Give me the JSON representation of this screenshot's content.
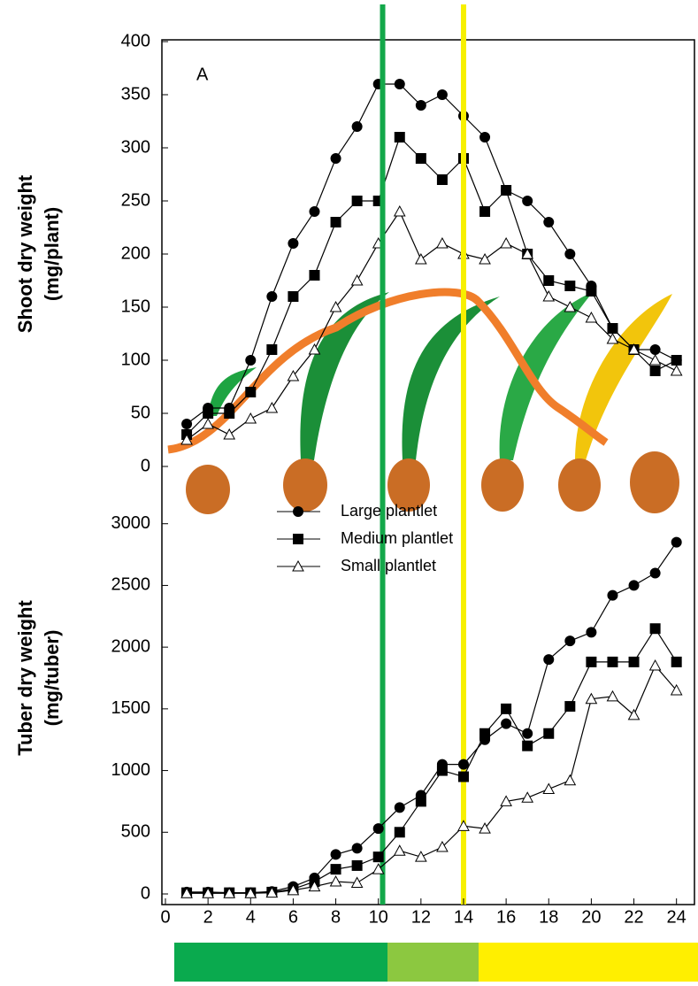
{
  "chart_data": [
    {
      "type": "line",
      "panel_label": "A",
      "ylabel": [
        "Shoot dry weight",
        "(mg/plant)"
      ],
      "x": [
        1,
        2,
        3,
        4,
        5,
        6,
        7,
        8,
        9,
        10,
        11,
        12,
        13,
        14,
        15,
        16,
        17,
        18,
        19,
        20,
        21,
        22,
        23,
        24
      ],
      "series": [
        {
          "name": "Large plantlet",
          "color": "#000000",
          "marker": "circle",
          "values": [
            40,
            55,
            55,
            100,
            160,
            210,
            240,
            290,
            320,
            360,
            360,
            340,
            350,
            330,
            310,
            260,
            250,
            230,
            200,
            170,
            130,
            110,
            110,
            100
          ]
        },
        {
          "name": "Medium plantlet",
          "color": "#000000",
          "marker": "square",
          "values": [
            30,
            50,
            50,
            70,
            110,
            160,
            180,
            230,
            250,
            250,
            310,
            290,
            270,
            290,
            240,
            260,
            200,
            175,
            170,
            165,
            130,
            110,
            90,
            100
          ]
        },
        {
          "name": "Small plantlet",
          "color": "#000000",
          "marker": "triangle",
          "values": [
            25,
            40,
            30,
            45,
            55,
            85,
            110,
            150,
            175,
            210,
            240,
            195,
            210,
            200,
            195,
            210,
            200,
            160,
            150,
            140,
            120,
            110,
            100,
            90
          ]
        }
      ],
      "xlim": [
        0,
        25
      ],
      "ylim": [
        0,
        400
      ],
      "yticks": [
        0,
        50,
        100,
        150,
        200,
        250,
        300,
        350,
        400
      ],
      "vlines": [
        {
          "x": 10.2,
          "color": "#13a84a"
        },
        {
          "x": 14,
          "color": "#f7f000"
        }
      ]
    },
    {
      "type": "line",
      "ylabel": [
        "Tuber dry weight",
        "(mg/tuber)"
      ],
      "x": [
        1,
        2,
        3,
        4,
        5,
        6,
        7,
        8,
        9,
        10,
        11,
        12,
        13,
        14,
        15,
        16,
        17,
        18,
        19,
        20,
        21,
        22,
        23,
        24
      ],
      "series": [
        {
          "name": "Large plantlet",
          "color": "#000000",
          "marker": "circle",
          "values": [
            15,
            15,
            10,
            10,
            20,
            60,
            130,
            320,
            370,
            530,
            700,
            800,
            1050,
            1050,
            1250,
            1380,
            1300,
            1900,
            2050,
            2120,
            2420,
            2500,
            2600,
            2850
          ]
        },
        {
          "name": "Medium plantlet",
          "color": "#000000",
          "marker": "square",
          "values": [
            10,
            10,
            10,
            10,
            15,
            40,
            100,
            200,
            230,
            300,
            500,
            750,
            1000,
            950,
            1300,
            1500,
            1200,
            1300,
            1520,
            1880,
            1880,
            1880,
            2150,
            1880
          ]
        },
        {
          "name": "Small plantlet",
          "color": "#000000",
          "marker": "triangle",
          "values": [
            5,
            5,
            5,
            5,
            10,
            30,
            60,
            100,
            90,
            200,
            350,
            300,
            380,
            550,
            530,
            750,
            780,
            850,
            920,
            1580,
            1600,
            1450,
            1850,
            1650
          ]
        }
      ],
      "xlim": [
        0,
        25
      ],
      "xticks": [
        0,
        2,
        4,
        6,
        8,
        10,
        12,
        14,
        16,
        18,
        20,
        22,
        24
      ],
      "ylim": [
        0,
        3500
      ],
      "yticks": [
        0,
        500,
        1000,
        1500,
        2000,
        2500,
        3000
      ],
      "legend": "top-left"
    }
  ]
}
